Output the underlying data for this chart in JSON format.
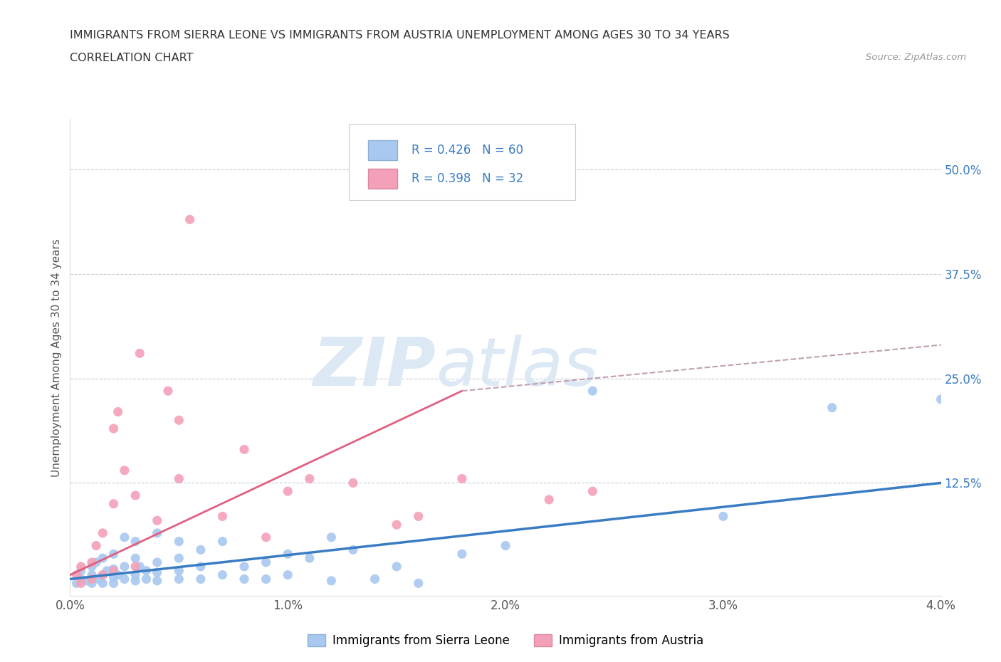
{
  "title_line1": "IMMIGRANTS FROM SIERRA LEONE VS IMMIGRANTS FROM AUSTRIA UNEMPLOYMENT AMONG AGES 30 TO 34 YEARS",
  "title_line2": "CORRELATION CHART",
  "source_text": "Source: ZipAtlas.com",
  "ylabel": "Unemployment Among Ages 30 to 34 years",
  "xlim": [
    0.0,
    0.04
  ],
  "ylim": [
    -0.01,
    0.56
  ],
  "xtick_labels": [
    "0.0%",
    "1.0%",
    "2.0%",
    "3.0%",
    "4.0%"
  ],
  "xtick_vals": [
    0.0,
    0.01,
    0.02,
    0.03,
    0.04
  ],
  "ytick_labels": [
    "12.5%",
    "25.0%",
    "37.5%",
    "50.0%"
  ],
  "ytick_vals": [
    0.125,
    0.25,
    0.375,
    0.5
  ],
  "sierra_leone_color": "#a8c8f0",
  "austria_color": "#f4a0b8",
  "sierra_leone_line_color": "#3a7cc4",
  "austria_line_color": "#e06080",
  "trendline_dash_color": "#c0a0b0",
  "sierra_leone_R": 0.426,
  "sierra_leone_N": 60,
  "austria_R": 0.398,
  "austria_N": 32,
  "watermark_zip": "ZIP",
  "watermark_atlas": "atlas",
  "watermark_color": "#dce8f4",
  "legend_label_sl": "Immigrants from Sierra Leone",
  "legend_label_at": "Immigrants from Austria",
  "sierra_leone_points": [
    [
      0.0003,
      0.005
    ],
    [
      0.0005,
      0.01
    ],
    [
      0.0005,
      0.02
    ],
    [
      0.0008,
      0.008
    ],
    [
      0.001,
      0.005
    ],
    [
      0.001,
      0.015
    ],
    [
      0.001,
      0.025
    ],
    [
      0.0012,
      0.03
    ],
    [
      0.0013,
      0.01
    ],
    [
      0.0015,
      0.005
    ],
    [
      0.0015,
      0.015
    ],
    [
      0.0015,
      0.035
    ],
    [
      0.0017,
      0.02
    ],
    [
      0.002,
      0.005
    ],
    [
      0.002,
      0.012
    ],
    [
      0.002,
      0.022
    ],
    [
      0.002,
      0.04
    ],
    [
      0.0022,
      0.015
    ],
    [
      0.0025,
      0.01
    ],
    [
      0.0025,
      0.025
    ],
    [
      0.0025,
      0.06
    ],
    [
      0.003,
      0.008
    ],
    [
      0.003,
      0.015
    ],
    [
      0.003,
      0.035
    ],
    [
      0.003,
      0.055
    ],
    [
      0.0032,
      0.025
    ],
    [
      0.0035,
      0.01
    ],
    [
      0.0035,
      0.02
    ],
    [
      0.004,
      0.008
    ],
    [
      0.004,
      0.018
    ],
    [
      0.004,
      0.03
    ],
    [
      0.004,
      0.065
    ],
    [
      0.005,
      0.01
    ],
    [
      0.005,
      0.02
    ],
    [
      0.005,
      0.035
    ],
    [
      0.005,
      0.055
    ],
    [
      0.006,
      0.01
    ],
    [
      0.006,
      0.025
    ],
    [
      0.006,
      0.045
    ],
    [
      0.007,
      0.015
    ],
    [
      0.007,
      0.055
    ],
    [
      0.008,
      0.01
    ],
    [
      0.008,
      0.025
    ],
    [
      0.009,
      0.01
    ],
    [
      0.009,
      0.03
    ],
    [
      0.01,
      0.015
    ],
    [
      0.01,
      0.04
    ],
    [
      0.011,
      0.035
    ],
    [
      0.012,
      0.008
    ],
    [
      0.012,
      0.06
    ],
    [
      0.013,
      0.045
    ],
    [
      0.014,
      0.01
    ],
    [
      0.015,
      0.025
    ],
    [
      0.016,
      0.005
    ],
    [
      0.018,
      0.04
    ],
    [
      0.02,
      0.05
    ],
    [
      0.024,
      0.235
    ],
    [
      0.03,
      0.085
    ],
    [
      0.035,
      0.215
    ],
    [
      0.04,
      0.225
    ]
  ],
  "austria_points": [
    [
      0.0003,
      0.015
    ],
    [
      0.0005,
      0.005
    ],
    [
      0.0005,
      0.025
    ],
    [
      0.001,
      0.01
    ],
    [
      0.001,
      0.03
    ],
    [
      0.0012,
      0.05
    ],
    [
      0.0015,
      0.015
    ],
    [
      0.0015,
      0.065
    ],
    [
      0.002,
      0.02
    ],
    [
      0.002,
      0.1
    ],
    [
      0.002,
      0.19
    ],
    [
      0.0022,
      0.21
    ],
    [
      0.0025,
      0.14
    ],
    [
      0.003,
      0.025
    ],
    [
      0.003,
      0.11
    ],
    [
      0.0032,
      0.28
    ],
    [
      0.004,
      0.08
    ],
    [
      0.0045,
      0.235
    ],
    [
      0.005,
      0.13
    ],
    [
      0.005,
      0.2
    ],
    [
      0.0055,
      0.44
    ],
    [
      0.007,
      0.085
    ],
    [
      0.008,
      0.165
    ],
    [
      0.009,
      0.06
    ],
    [
      0.01,
      0.115
    ],
    [
      0.011,
      0.13
    ],
    [
      0.013,
      0.125
    ],
    [
      0.015,
      0.075
    ],
    [
      0.016,
      0.085
    ],
    [
      0.018,
      0.13
    ],
    [
      0.022,
      0.105
    ],
    [
      0.024,
      0.115
    ]
  ],
  "sl_trend": [
    0.0,
    0.04,
    0.01,
    0.125
  ],
  "at_trend_solid": [
    0.0,
    0.018,
    0.015,
    0.235
  ],
  "at_trend_dash": [
    0.018,
    0.04,
    0.235,
    0.29
  ]
}
